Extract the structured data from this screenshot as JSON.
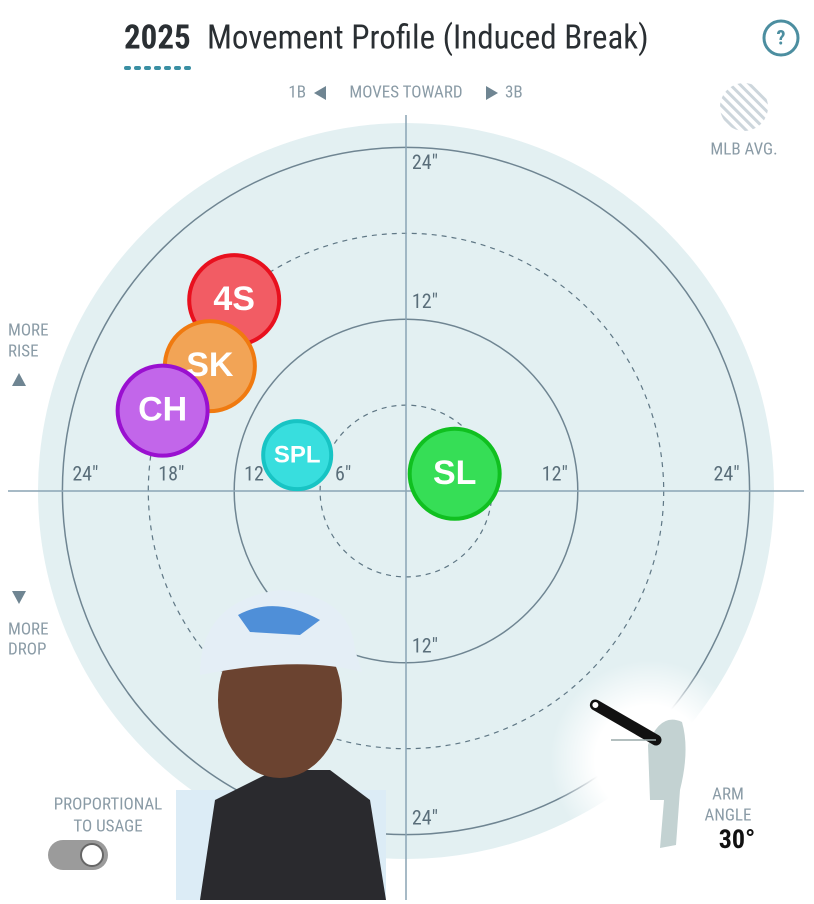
{
  "chart_data": {
    "type": "scatter",
    "season": "2025",
    "title": "Movement Profile (Induced Break)",
    "direction": {
      "left": "1B",
      "middle": "MOVES TOWARD",
      "right": "3B"
    },
    "legend": "MLB AVG.",
    "rise_label": [
      "MORE",
      "RISE"
    ],
    "drop_label": [
      "MORE",
      "DROP"
    ],
    "toggle_label": [
      "PROPORTIONAL",
      "TO USAGE"
    ],
    "arm_angle": {
      "label": [
        "ARM",
        "ANGLE"
      ],
      "value": 30,
      "value_label": "30°"
    },
    "xlim": [
      -27.8,
      27.8
    ],
    "ylim": [
      -28.5,
      26.2
    ],
    "xticks": [
      {
        "value": -24,
        "label": "24\""
      },
      {
        "value": -18,
        "label": "18\""
      },
      {
        "value": -12,
        "label": "12\""
      },
      {
        "value": -6,
        "label": "6\""
      },
      {
        "value": 12,
        "label": "12\""
      },
      {
        "value": 24,
        "label": "24\""
      }
    ],
    "yticks": [
      {
        "value": 24,
        "label": "24\""
      },
      {
        "value": 12,
        "label": "12\""
      },
      {
        "value": -12,
        "label": "12\""
      },
      {
        "value": -24,
        "label": "24\""
      }
    ],
    "series": [
      {
        "name": "4S",
        "color": "#f25c64",
        "border": "#e8101e",
        "x": [
          -12.0
        ],
        "values": [
          13.3
        ]
      },
      {
        "name": "SK",
        "color": "#f2a456",
        "border": "#f07a10",
        "x": [
          -13.7
        ],
        "values": [
          8.7
        ]
      },
      {
        "name": "CH",
        "color": "#c266ea",
        "border": "#9a10d0",
        "x": [
          -17.0
        ],
        "values": [
          5.6
        ]
      },
      {
        "name": "SPL",
        "color": "#38dede",
        "border": "#18c4c4",
        "x": [
          -7.6
        ],
        "values": [
          2.5
        ]
      },
      {
        "name": "SL",
        "color": "#36de56",
        "border": "#10c020",
        "x": [
          3.4
        ],
        "values": [
          1.2
        ]
      }
    ]
  }
}
